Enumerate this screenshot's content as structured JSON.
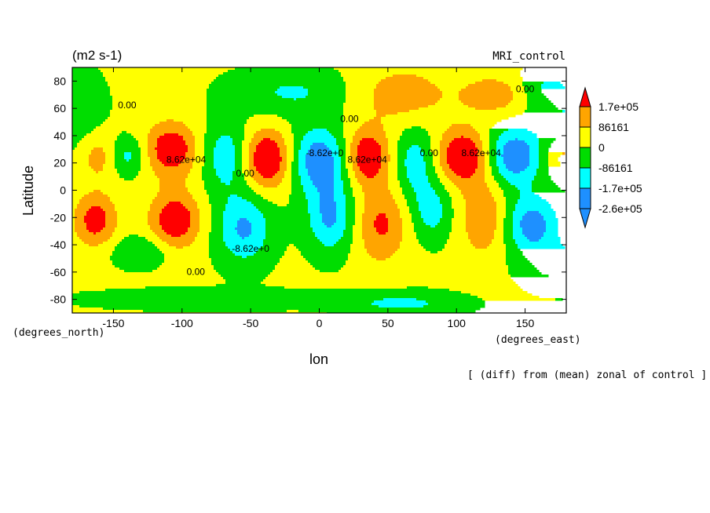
{
  "chart_data": {
    "type": "heatmap",
    "units": "(m2 s-1)",
    "model": "MRI_control",
    "xlabel": "lon",
    "ylabel": "Latitude",
    "x_unit_label": "(degrees_east)",
    "y_unit_label": "(degrees_north)",
    "footer": "[ (diff) from (mean) zonal of control ]",
    "xlim": [
      -180,
      180
    ],
    "ylim": [
      -90,
      90
    ],
    "x_ticks": [
      "-150",
      "-100",
      "-50",
      "0",
      "50",
      "100",
      "150"
    ],
    "x_tick_values": [
      -150,
      -100,
      -50,
      0,
      50,
      100,
      150
    ],
    "y_ticks": [
      "80",
      "60",
      "40",
      "20",
      "0",
      "-20",
      "-40",
      "-60",
      "-80"
    ],
    "y_tick_values": [
      80,
      60,
      40,
      20,
      0,
      -20,
      -40,
      -60,
      -80
    ],
    "legend": {
      "labels": [
        "1.7e+05",
        "86161",
        "0",
        "-86161",
        "-1.7e+05",
        "-2.6e+05"
      ],
      "colors": [
        "#ff0000",
        "#ffa500",
        "#ffff00",
        "#00dd00",
        "#00ffff",
        "#1e90ff",
        "#1e90ff"
      ]
    },
    "contour_labels": [
      {
        "text": "0.00",
        "lon": -140,
        "lat": 60
      },
      {
        "text": "8.62e+04",
        "lon": -97,
        "lat": 20
      },
      {
        "text": "0.00",
        "lon": -54,
        "lat": 10
      },
      {
        "text": "-8.62e+0",
        "lon": -50,
        "lat": -45
      },
      {
        "text": "-8.62e+0",
        "lon": 4,
        "lat": 25
      },
      {
        "text": "0.00",
        "lon": 22,
        "lat": 50
      },
      {
        "text": "8.62e+04",
        "lon": 35,
        "lat": 20
      },
      {
        "text": "0.00",
        "lon": 80,
        "lat": 25
      },
      {
        "text": "8.62e+04",
        "lon": 118,
        "lat": 25
      },
      {
        "text": "0.00",
        "lon": 150,
        "lat": 72
      },
      {
        "text": "0.00",
        "lon": -90,
        "lat": -62
      }
    ],
    "anomalies": [
      {
        "lon": -160,
        "lat": 25,
        "amp": 120000,
        "rx": 10,
        "ry": 12
      },
      {
        "lon": -140,
        "lat": 25,
        "amp": -140000,
        "rx": 10,
        "ry": 10
      },
      {
        "lon": -108,
        "lat": 30,
        "amp": 230000,
        "rx": 14,
        "ry": 14
      },
      {
        "lon": -105,
        "lat": -22,
        "amp": 230000,
        "rx": 13,
        "ry": 15
      },
      {
        "lon": -163,
        "lat": -22,
        "amp": 200000,
        "rx": 11,
        "ry": 14
      },
      {
        "lon": -68,
        "lat": 25,
        "amp": -160000,
        "rx": 12,
        "ry": 18
      },
      {
        "lon": -55,
        "lat": -28,
        "amp": -200000,
        "rx": 14,
        "ry": 18
      },
      {
        "lon": -38,
        "lat": 23,
        "amp": 270000,
        "rx": 12,
        "ry": 15
      },
      {
        "lon": 0,
        "lat": 22,
        "amp": -250000,
        "rx": 14,
        "ry": 17
      },
      {
        "lon": 8,
        "lat": -20,
        "amp": -200000,
        "rx": 12,
        "ry": 18
      },
      {
        "lon": 35,
        "lat": 25,
        "amp": 250000,
        "rx": 11,
        "ry": 14
      },
      {
        "lon": 45,
        "lat": -25,
        "amp": 170000,
        "rx": 13,
        "ry": 20
      },
      {
        "lon": 70,
        "lat": 20,
        "amp": -150000,
        "rx": 10,
        "ry": 18
      },
      {
        "lon": 82,
        "lat": -15,
        "amp": -140000,
        "rx": 10,
        "ry": 15
      },
      {
        "lon": 105,
        "lat": 25,
        "amp": 260000,
        "rx": 13,
        "ry": 14
      },
      {
        "lon": 120,
        "lat": -20,
        "amp": 150000,
        "rx": 12,
        "ry": 20
      },
      {
        "lon": 142,
        "lat": 25,
        "amp": -260000,
        "rx": 14,
        "ry": 15
      },
      {
        "lon": 155,
        "lat": -25,
        "amp": -230000,
        "rx": 14,
        "ry": 15
      },
      {
        "lon": 177,
        "lat": 25,
        "amp": 150000,
        "rx": 10,
        "ry": 12
      },
      {
        "lon": 60,
        "lat": 70,
        "amp": 120000,
        "rx": 25,
        "ry": 15
      },
      {
        "lon": 130,
        "lat": 70,
        "amp": 140000,
        "rx": 18,
        "ry": 10
      },
      {
        "lon": -20,
        "lat": 72,
        "amp": -110000,
        "rx": 30,
        "ry": 12
      },
      {
        "lon": 160,
        "lat": 75,
        "amp": -100000,
        "rx": 15,
        "ry": 10
      },
      {
        "lon": -130,
        "lat": -45,
        "amp": -110000,
        "rx": 15,
        "ry": 8
      },
      {
        "lon": 175,
        "lat": -55,
        "amp": -130000,
        "rx": 18,
        "ry": 12
      },
      {
        "lon": 60,
        "lat": -83,
        "amp": -120000,
        "rx": 30,
        "ry": 6
      },
      {
        "lon": -80,
        "lat": -80,
        "amp": -90000,
        "rx": 60,
        "ry": 5
      },
      {
        "lon": -180,
        "lat": 60,
        "amp": -100000,
        "rx": 15,
        "ry": 20
      },
      {
        "lon": 180,
        "lat": 50,
        "amp": -100000,
        "rx": 15,
        "ry": 25
      }
    ]
  }
}
